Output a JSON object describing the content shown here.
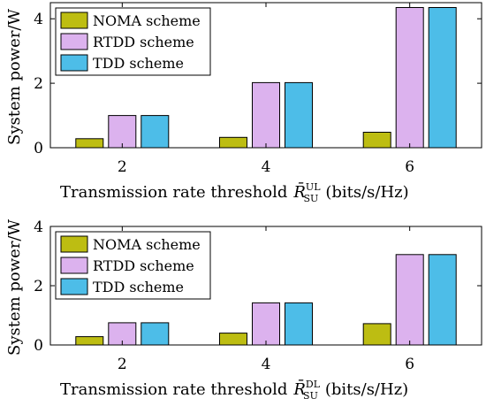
{
  "chart_data": [
    {
      "type": "bar",
      "categories": [
        "2",
        "4",
        "6"
      ],
      "series": [
        {
          "name": "NOMA scheme",
          "values": [
            0.28,
            0.32,
            0.48
          ]
        },
        {
          "name": "RTDD scheme",
          "values": [
            1.0,
            2.02,
            4.35
          ]
        },
        {
          "name": "TDD scheme",
          "values": [
            1.0,
            2.02,
            4.35
          ]
        }
      ],
      "xlabel": "Transmission rate threshold",
      "xlabel_symbol": "R̄",
      "xlabel_sub": "SU",
      "xlabel_sup": "UL",
      "xlabel_unit": "(bits/s/Hz)",
      "ylabel": "System power/W",
      "ylim": [
        0,
        4.5
      ],
      "yticks": [
        "0",
        "2",
        "4"
      ],
      "legend_position": "top-left",
      "grid": false
    },
    {
      "type": "bar",
      "categories": [
        "2",
        "4",
        "6"
      ],
      "series": [
        {
          "name": "NOMA scheme",
          "values": [
            0.28,
            0.4,
            0.72
          ]
        },
        {
          "name": "RTDD scheme",
          "values": [
            0.75,
            1.42,
            3.05
          ]
        },
        {
          "name": "TDD scheme",
          "values": [
            0.75,
            1.42,
            3.05
          ]
        }
      ],
      "xlabel": "Transmission rate threshold",
      "xlabel_symbol": "R̄",
      "xlabel_sub": "SU",
      "xlabel_sup": "DL",
      "xlabel_unit": "(bits/s/Hz)",
      "ylabel": "System power/W",
      "ylim": [
        0,
        4
      ],
      "yticks": [
        "0",
        "2",
        "4"
      ],
      "legend_position": "top-left",
      "grid": false
    }
  ],
  "colors": [
    "#bdbd12",
    "#dcb2ee",
    "#4dbde8"
  ]
}
